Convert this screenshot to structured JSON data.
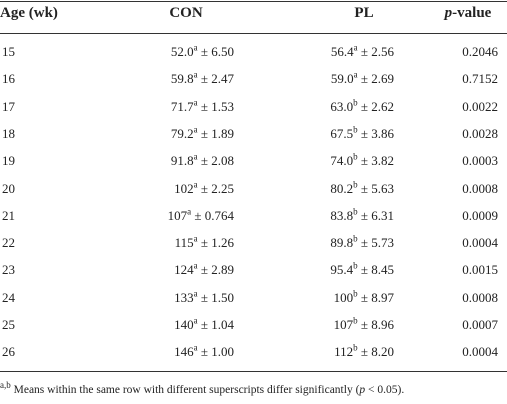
{
  "table": {
    "columns": [
      "Age (wk)",
      "CON",
      "PL",
      {
        "italic": "p",
        "text": "-value"
      }
    ],
    "rows": [
      [
        "15",
        {
          "mean": "52.0",
          "sup": "a",
          "sd": "± 6.50"
        },
        {
          "mean": "56.4",
          "sup": "a",
          "sd": "± 2.56"
        },
        "0.2046"
      ],
      [
        "16",
        {
          "mean": "59.8",
          "sup": "a",
          "sd": "± 2.47"
        },
        {
          "mean": "59.0",
          "sup": "a",
          "sd": "± 2.69"
        },
        "0.7152"
      ],
      [
        "17",
        {
          "mean": "71.7",
          "sup": "a",
          "sd": "± 1.53"
        },
        {
          "mean": "63.0",
          "sup": "b",
          "sd": "± 2.62"
        },
        "0.0022"
      ],
      [
        "18",
        {
          "mean": "79.2",
          "sup": "a",
          "sd": "± 1.89"
        },
        {
          "mean": "67.5",
          "sup": "b",
          "sd": "± 3.86"
        },
        "0.0028"
      ],
      [
        "19",
        {
          "mean": "91.8",
          "sup": "a",
          "sd": "± 2.08"
        },
        {
          "mean": "74.0",
          "sup": "b",
          "sd": "± 3.82"
        },
        "0.0003"
      ],
      [
        "20",
        {
          "mean": "102",
          "sup": "a",
          "sd": "± 2.25"
        },
        {
          "mean": "80.2",
          "sup": "b",
          "sd": "± 5.63"
        },
        "0.0008"
      ],
      [
        "21",
        {
          "mean": "107",
          "sup": "a",
          "sd": "± 0.764"
        },
        {
          "mean": "83.8",
          "sup": "b",
          "sd": "± 6.31"
        },
        "0.0009"
      ],
      [
        "22",
        {
          "mean": "115",
          "sup": "a",
          "sd": "± 1.26"
        },
        {
          "mean": "89.8",
          "sup": "b",
          "sd": "± 5.73"
        },
        "0.0004"
      ],
      [
        "23",
        {
          "mean": "124",
          "sup": "a",
          "sd": "± 2.89"
        },
        {
          "mean": "95.4",
          "sup": "b",
          "sd": "± 8.45"
        },
        "0.0015"
      ],
      [
        "24",
        {
          "mean": "133",
          "sup": "a",
          "sd": "± 1.50"
        },
        {
          "mean": "100",
          "sup": "b",
          "sd": "± 8.97"
        },
        "0.0008"
      ],
      [
        "25",
        {
          "mean": "140",
          "sup": "a",
          "sd": "± 1.04"
        },
        {
          "mean": "107",
          "sup": "b",
          "sd": "± 8.96"
        },
        "0.0007"
      ],
      [
        "26",
        {
          "mean": "146",
          "sup": "a",
          "sd": "± 1.00"
        },
        {
          "mean": "112",
          "sup": "b",
          "sd": "± 8.20"
        },
        "0.0004"
      ]
    ],
    "footnote": {
      "sup": "a,b",
      "text_1": "Means within the same row with different superscripts differ significantly (",
      "p": "p",
      "text_2": " < 0.05)."
    }
  }
}
